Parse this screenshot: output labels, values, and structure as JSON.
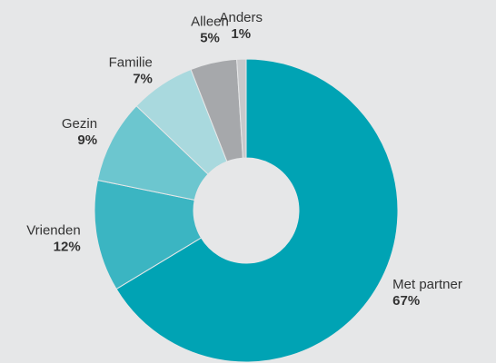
{
  "chart_data": {
    "type": "donut",
    "categories": [
      "Met partner",
      "Vrienden",
      "Gezin",
      "Familie",
      "Alleen",
      "Anders"
    ],
    "values": [
      67,
      12,
      9,
      7,
      5,
      1
    ],
    "value_labels": [
      "67%",
      "12%",
      "9%",
      "7%",
      "5%",
      "1%"
    ],
    "colors": [
      "#00a3b4",
      "#3bb5c2",
      "#6cc6cf",
      "#a9d9de",
      "#a6a8ab",
      "#c8c9cb"
    ]
  }
}
